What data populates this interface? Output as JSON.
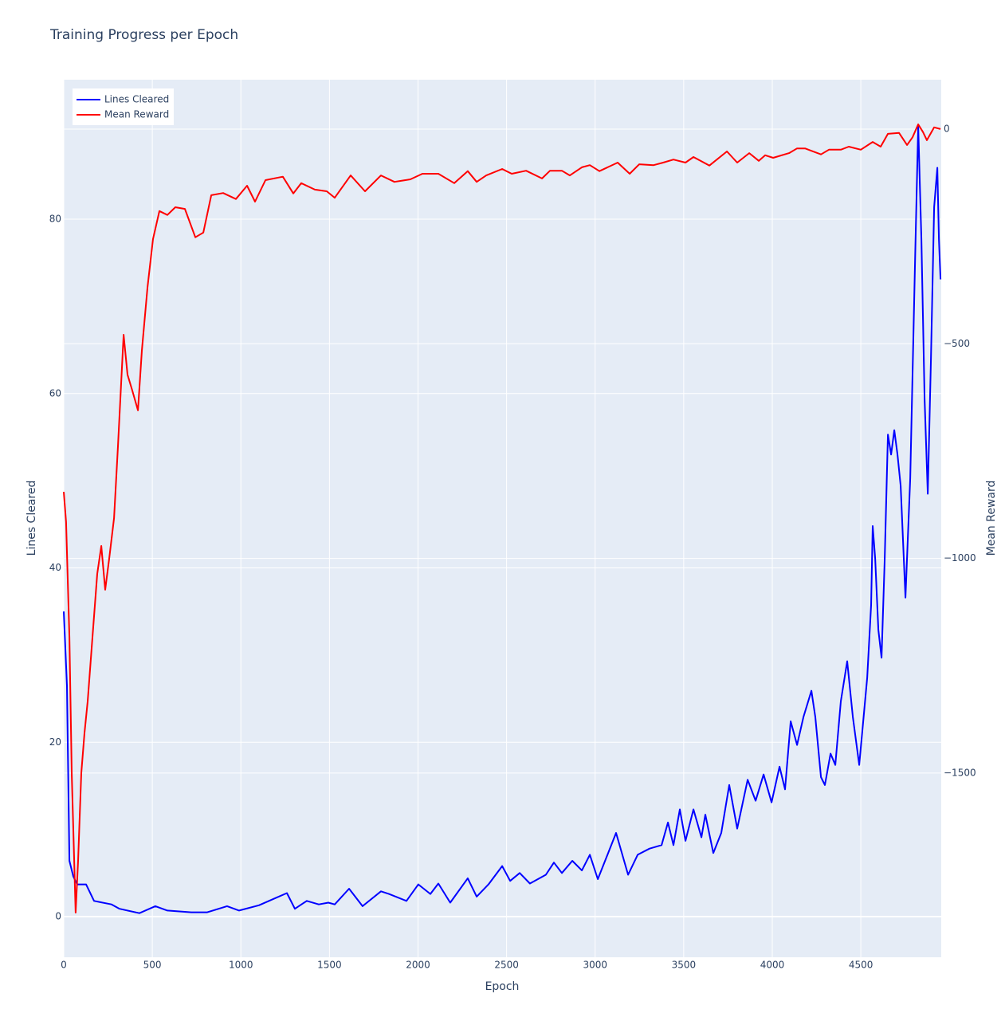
{
  "chart_data": {
    "type": "line",
    "title": "Training Progress per Epoch",
    "x_label": "Epoch",
    "y_label": "Lines Cleared",
    "y2_label": "Mean Reward",
    "xlim": [
      0,
      4954
    ],
    "xticks": [
      0,
      500,
      1000,
      1500,
      2000,
      2500,
      3000,
      3500,
      4000,
      4500
    ],
    "ylim": [
      -4.66,
      96
    ],
    "yticks": [
      0,
      20,
      40,
      60,
      80
    ],
    "y2lim": [
      -1929,
      115
    ],
    "y2ticks": [
      {
        "value": -1500,
        "label": "−1500"
      },
      {
        "value": -1000,
        "label": "−1000"
      },
      {
        "value": -500,
        "label": "−500"
      },
      0
    ],
    "grid": true,
    "legend": "top-left",
    "series": [
      {
        "name": "Lines Cleared",
        "color": "#0000ff",
        "axis": "y",
        "x": [
          0,
          18,
          32,
          54,
          76,
          126,
          171,
          270,
          315,
          427,
          517,
          585,
          720,
          810,
          922,
          990,
          1102,
          1192,
          1260,
          1305,
          1372,
          1440,
          1494,
          1530,
          1611,
          1687,
          1791,
          1836,
          1935,
          2002,
          2070,
          2115,
          2182,
          2281,
          2331,
          2398,
          2475,
          2520,
          2574,
          2632,
          2722,
          2767,
          2812,
          2871,
          2925,
          2970,
          3015,
          3060,
          3118,
          3186,
          3240,
          3307,
          3375,
          3411,
          3442,
          3478,
          3510,
          3555,
          3600,
          3622,
          3667,
          3712,
          3757,
          3802,
          3861,
          3906,
          3951,
          3996,
          4041,
          4072,
          4104,
          4140,
          4176,
          4221,
          4243,
          4275,
          4297,
          4329,
          4356,
          4387,
          4423,
          4455,
          4491,
          4536,
          4558,
          4567,
          4581,
          4599,
          4617,
          4635,
          4653,
          4671,
          4689,
          4707,
          4725,
          4752,
          4779,
          4806,
          4824,
          4842,
          4860,
          4878,
          4896,
          4914,
          4932,
          4941,
          4950
        ],
        "values": [
          35,
          26.5,
          6.4,
          4.6,
          3.7,
          3.7,
          1.8,
          1.4,
          0.9,
          0.4,
          1.2,
          0.7,
          0.5,
          0.5,
          1.2,
          0.7,
          1.3,
          2.1,
          2.7,
          0.9,
          1.8,
          1.4,
          1.6,
          1.4,
          3.2,
          1.2,
          2.9,
          2.6,
          1.8,
          3.7,
          2.6,
          3.8,
          1.6,
          4.4,
          2.3,
          3.7,
          5.8,
          4.1,
          5.0,
          3.8,
          4.8,
          6.2,
          5.0,
          6.4,
          5.3,
          7.1,
          4.3,
          6.6,
          9.6,
          4.8,
          7.1,
          7.8,
          8.2,
          10.8,
          8.2,
          12.3,
          8.7,
          12.3,
          9.1,
          11.7,
          7.3,
          9.6,
          15.1,
          10.1,
          15.7,
          13.3,
          16.3,
          13.1,
          17.2,
          14.6,
          22.4,
          19.7,
          22.9,
          25.9,
          22.9,
          16.0,
          15.1,
          18.7,
          17.4,
          24.7,
          29.3,
          22.9,
          17.4,
          27.4,
          35.7,
          44.8,
          41.1,
          32.9,
          29.7,
          41.1,
          55.3,
          53.0,
          55.8,
          53.0,
          49.4,
          36.6,
          50.3,
          75.0,
          90.7,
          77.7,
          59.4,
          48.5,
          64.0,
          81.4,
          85.9,
          77.7,
          73.1
        ]
      },
      {
        "name": "Mean Reward",
        "color": "#ff0000",
        "axis": "y2",
        "x": [
          0,
          13,
          32,
          45,
          67,
          81,
          99,
          117,
          135,
          162,
          189,
          212,
          234,
          257,
          284,
          306,
          338,
          360,
          387,
          419,
          441,
          473,
          504,
          540,
          585,
          630,
          684,
          743,
          788,
          833,
          900,
          972,
          1035,
          1080,
          1139,
          1237,
          1296,
          1341,
          1418,
          1485,
          1530,
          1620,
          1701,
          1791,
          1867,
          1957,
          2025,
          2115,
          2205,
          2281,
          2331,
          2385,
          2475,
          2529,
          2610,
          2700,
          2745,
          2812,
          2857,
          2925,
          2970,
          3024,
          3127,
          3195,
          3249,
          3330,
          3384,
          3442,
          3510,
          3555,
          3645,
          3744,
          3802,
          3870,
          3924,
          3960,
          4005,
          4095,
          4140,
          4185,
          4275,
          4320,
          4387,
          4432,
          4500,
          4567,
          4612,
          4653,
          4716,
          4761,
          4792,
          4824,
          4851,
          4873,
          4914,
          4950
        ],
        "values": [
          -845,
          -915,
          -1184,
          -1500,
          -1825,
          -1704,
          -1500,
          -1407,
          -1333,
          -1184,
          -1036,
          -971,
          -1073,
          -999,
          -906,
          -739,
          -479,
          -572,
          -609,
          -655,
          -516,
          -368,
          -256,
          -191,
          -200,
          -182,
          -186,
          -252,
          -241,
          -154,
          -149,
          -163,
          -132,
          -169,
          -119,
          -111,
          -150,
          -126,
          -141,
          -145,
          -160,
          -108,
          -145,
          -108,
          -123,
          -117,
          -104,
          -104,
          -126,
          -98,
          -123,
          -108,
          -93,
          -104,
          -97,
          -115,
          -97,
          -97,
          -108,
          -89,
          -84,
          -98,
          -78,
          -104,
          -82,
          -84,
          -78,
          -71,
          -78,
          -65,
          -85,
          -52,
          -78,
          -56,
          -74,
          -61,
          -67,
          -56,
          -45,
          -45,
          -59,
          -48,
          -48,
          -41,
          -48,
          -30,
          -41,
          -11,
          -9,
          -37,
          -19,
          11,
          -7,
          -26,
          4,
          0
        ]
      }
    ]
  }
}
